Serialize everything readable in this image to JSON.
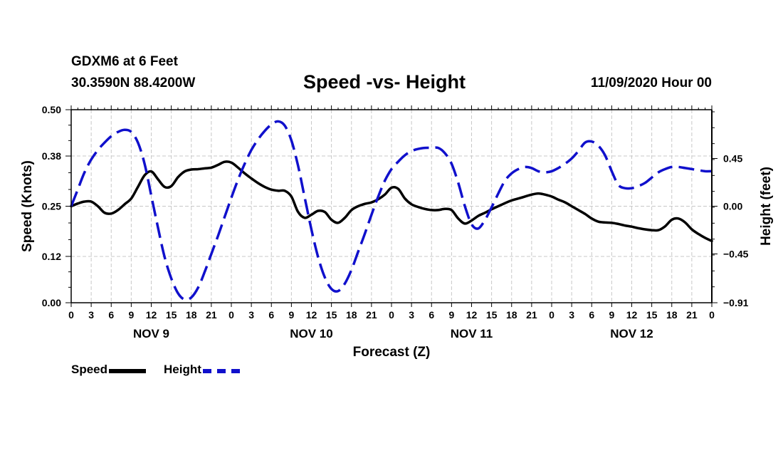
{
  "header": {
    "station": "GDXM6 at 6 Feet",
    "coords": "30.3590N 88.4200W",
    "title": "Speed -vs- Height",
    "datetime": "11/09/2020 Hour 00"
  },
  "legend": {
    "speed": "Speed",
    "height": "Height"
  },
  "colors": {
    "speed": "#000000",
    "height": "#1010cc",
    "grid": "#c8c8c8"
  },
  "chart_data": {
    "type": "line",
    "title": "Speed -vs- Height",
    "xlabel": "Forecast (Z)",
    "ylabel_left": "Speed (Knots)",
    "ylabel_right": "Height (feet)",
    "x_range_hours": [
      0,
      96
    ],
    "ylim_left": [
      0,
      0.5
    ],
    "ylim_right": [
      -0.91,
      0.91
    ],
    "left_ticks": [
      "0.00",
      "0.12",
      "0.25",
      "0.38",
      "0.50"
    ],
    "right_ticks": [
      "−0.91",
      "−0.45",
      "0.00",
      "0.45"
    ],
    "right_tick_values": [
      -0.91,
      -0.45,
      0.0,
      0.45
    ],
    "hour_labels": [
      "0",
      "3",
      "6",
      "9",
      "12",
      "15",
      "18",
      "21",
      "0",
      "3",
      "6",
      "9",
      "12",
      "15",
      "18",
      "21",
      "0",
      "3",
      "6",
      "9",
      "12",
      "15",
      "18",
      "21",
      "0",
      "3",
      "6",
      "9",
      "12",
      "15",
      "18",
      "21",
      "0"
    ],
    "day_labels": [
      {
        "label": "NOV 9",
        "hour": 12
      },
      {
        "label": "NOV 10",
        "hour": 36
      },
      {
        "label": "NOV 11",
        "hour": 60
      },
      {
        "label": "NOV 12",
        "hour": 84
      }
    ],
    "series": [
      {
        "name": "Speed",
        "axis": "left",
        "points": [
          [
            0,
            0.25
          ],
          [
            1,
            0.257
          ],
          [
            2,
            0.262
          ],
          [
            3,
            0.262
          ],
          [
            4,
            0.25
          ],
          [
            5,
            0.233
          ],
          [
            6,
            0.231
          ],
          [
            7,
            0.24
          ],
          [
            8,
            0.255
          ],
          [
            9,
            0.27
          ],
          [
            10,
            0.3
          ],
          [
            11,
            0.33
          ],
          [
            12,
            0.34
          ],
          [
            13,
            0.32
          ],
          [
            14,
            0.3
          ],
          [
            15,
            0.302
          ],
          [
            16,
            0.325
          ],
          [
            17,
            0.34
          ],
          [
            18,
            0.345
          ],
          [
            19,
            0.346
          ],
          [
            20,
            0.348
          ],
          [
            21,
            0.35
          ],
          [
            22,
            0.357
          ],
          [
            23,
            0.365
          ],
          [
            24,
            0.363
          ],
          [
            25,
            0.35
          ],
          [
            26,
            0.335
          ],
          [
            27,
            0.322
          ],
          [
            28,
            0.31
          ],
          [
            29,
            0.3
          ],
          [
            30,
            0.293
          ],
          [
            31,
            0.29
          ],
          [
            32,
            0.29
          ],
          [
            33,
            0.275
          ],
          [
            34,
            0.235
          ],
          [
            35,
            0.22
          ],
          [
            36,
            0.228
          ],
          [
            37,
            0.238
          ],
          [
            38,
            0.235
          ],
          [
            39,
            0.215
          ],
          [
            40,
            0.207
          ],
          [
            41,
            0.22
          ],
          [
            42,
            0.24
          ],
          [
            43,
            0.25
          ],
          [
            44,
            0.256
          ],
          [
            45,
            0.26
          ],
          [
            46,
            0.268
          ],
          [
            47,
            0.28
          ],
          [
            48,
            0.298
          ],
          [
            49,
            0.295
          ],
          [
            50,
            0.27
          ],
          [
            51,
            0.255
          ],
          [
            52,
            0.248
          ],
          [
            53,
            0.243
          ],
          [
            54,
            0.24
          ],
          [
            55,
            0.24
          ],
          [
            56,
            0.243
          ],
          [
            57,
            0.24
          ],
          [
            58,
            0.218
          ],
          [
            59,
            0.205
          ],
          [
            60,
            0.213
          ],
          [
            61,
            0.225
          ],
          [
            62,
            0.233
          ],
          [
            63,
            0.242
          ],
          [
            64,
            0.25
          ],
          [
            65,
            0.258
          ],
          [
            66,
            0.265
          ],
          [
            67,
            0.27
          ],
          [
            68,
            0.275
          ],
          [
            69,
            0.28
          ],
          [
            70,
            0.283
          ],
          [
            71,
            0.28
          ],
          [
            72,
            0.275
          ],
          [
            73,
            0.267
          ],
          [
            74,
            0.26
          ],
          [
            75,
            0.25
          ],
          [
            76,
            0.24
          ],
          [
            77,
            0.23
          ],
          [
            78,
            0.218
          ],
          [
            79,
            0.21
          ],
          [
            80,
            0.208
          ],
          [
            81,
            0.207
          ],
          [
            82,
            0.204
          ],
          [
            83,
            0.2
          ],
          [
            84,
            0.197
          ],
          [
            85,
            0.193
          ],
          [
            86,
            0.19
          ],
          [
            87,
            0.188
          ],
          [
            88,
            0.188
          ],
          [
            89,
            0.198
          ],
          [
            90,
            0.215
          ],
          [
            91,
            0.218
          ],
          [
            92,
            0.208
          ],
          [
            93,
            0.19
          ],
          [
            94,
            0.178
          ],
          [
            95,
            0.168
          ],
          [
            96,
            0.16
          ]
        ]
      },
      {
        "name": "Height",
        "axis": "right",
        "points": [
          [
            0,
            0.0
          ],
          [
            1,
            0.16
          ],
          [
            2,
            0.32
          ],
          [
            3,
            0.44
          ],
          [
            4,
            0.53
          ],
          [
            5,
            0.6
          ],
          [
            6,
            0.66
          ],
          [
            7,
            0.7
          ],
          [
            8,
            0.72
          ],
          [
            9,
            0.7
          ],
          [
            10,
            0.6
          ],
          [
            11,
            0.4
          ],
          [
            12,
            0.1
          ],
          [
            13,
            -0.2
          ],
          [
            14,
            -0.48
          ],
          [
            15,
            -0.68
          ],
          [
            16,
            -0.82
          ],
          [
            17,
            -0.88
          ],
          [
            18,
            -0.86
          ],
          [
            19,
            -0.77
          ],
          [
            20,
            -0.62
          ],
          [
            21,
            -0.45
          ],
          [
            22,
            -0.28
          ],
          [
            23,
            -0.1
          ],
          [
            24,
            0.08
          ],
          [
            25,
            0.25
          ],
          [
            26,
            0.4
          ],
          [
            27,
            0.53
          ],
          [
            28,
            0.63
          ],
          [
            29,
            0.71
          ],
          [
            30,
            0.77
          ],
          [
            31,
            0.8
          ],
          [
            32,
            0.76
          ],
          [
            33,
            0.62
          ],
          [
            34,
            0.38
          ],
          [
            35,
            0.08
          ],
          [
            36,
            -0.22
          ],
          [
            37,
            -0.48
          ],
          [
            38,
            -0.67
          ],
          [
            39,
            -0.78
          ],
          [
            40,
            -0.8
          ],
          [
            41,
            -0.73
          ],
          [
            42,
            -0.6
          ],
          [
            43,
            -0.43
          ],
          [
            44,
            -0.26
          ],
          [
            45,
            -0.08
          ],
          [
            46,
            0.09
          ],
          [
            47,
            0.24
          ],
          [
            48,
            0.35
          ],
          [
            49,
            0.42
          ],
          [
            50,
            0.48
          ],
          [
            51,
            0.52
          ],
          [
            52,
            0.54
          ],
          [
            53,
            0.55
          ],
          [
            54,
            0.55
          ],
          [
            55,
            0.55
          ],
          [
            56,
            0.5
          ],
          [
            57,
            0.4
          ],
          [
            58,
            0.22
          ],
          [
            59,
            0.0
          ],
          [
            60,
            -0.17
          ],
          [
            61,
            -0.21
          ],
          [
            62,
            -0.13
          ],
          [
            63,
            -0.01
          ],
          [
            64,
            0.12
          ],
          [
            65,
            0.24
          ],
          [
            66,
            0.31
          ],
          [
            67,
            0.35
          ],
          [
            68,
            0.37
          ],
          [
            69,
            0.36
          ],
          [
            70,
            0.33
          ],
          [
            71,
            0.32
          ],
          [
            72,
            0.33
          ],
          [
            73,
            0.36
          ],
          [
            74,
            0.4
          ],
          [
            75,
            0.45
          ],
          [
            76,
            0.52
          ],
          [
            77,
            0.6
          ],
          [
            78,
            0.61
          ],
          [
            79,
            0.57
          ],
          [
            80,
            0.48
          ],
          [
            81,
            0.33
          ],
          [
            82,
            0.2
          ],
          [
            83,
            0.17
          ],
          [
            84,
            0.17
          ],
          [
            85,
            0.19
          ],
          [
            86,
            0.22
          ],
          [
            87,
            0.27
          ],
          [
            88,
            0.32
          ],
          [
            89,
            0.35
          ],
          [
            90,
            0.37
          ],
          [
            91,
            0.37
          ],
          [
            92,
            0.36
          ],
          [
            93,
            0.35
          ],
          [
            94,
            0.34
          ],
          [
            95,
            0.33
          ],
          [
            96,
            0.33
          ]
        ]
      }
    ]
  }
}
